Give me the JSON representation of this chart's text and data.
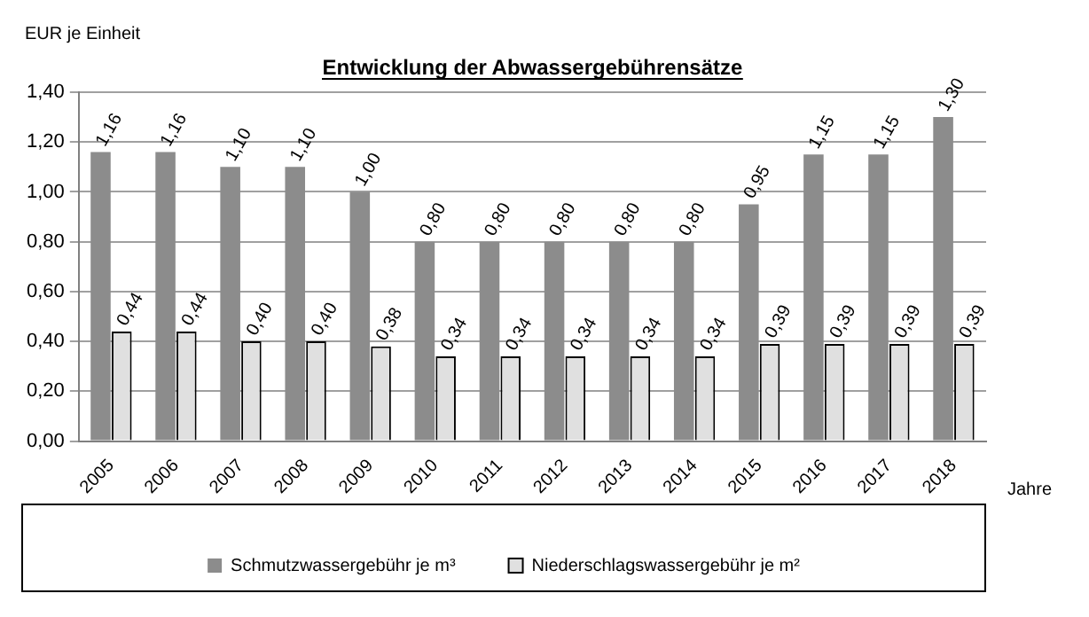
{
  "chart_data": {
    "type": "bar",
    "title": "Entwicklung der Abwassergebührensätze",
    "ylabel": "EUR je Einheit",
    "xlabel": "Jahre",
    "categories": [
      "2005",
      "2006",
      "2007",
      "2008",
      "2009",
      "2010",
      "2011",
      "2012",
      "2013",
      "2014",
      "2015",
      "2016",
      "2017",
      "2018"
    ],
    "series": [
      {
        "name": "Schmutzwassergebühr je m³",
        "color": "#8c8c8c",
        "values": [
          1.16,
          1.16,
          1.1,
          1.1,
          1.0,
          0.8,
          0.8,
          0.8,
          0.8,
          0.8,
          0.95,
          1.15,
          1.15,
          1.3
        ],
        "value_labels": [
          "1,16",
          "1,16",
          "1,10",
          "1,10",
          "1,00",
          "0,80",
          "0,80",
          "0,80",
          "0,80",
          "0,80",
          "0,95",
          "1,15",
          "1,15",
          "1,30"
        ]
      },
      {
        "name": "Niederschlagswassergebühr je m²",
        "color": "#e0e0e0",
        "values": [
          0.44,
          0.44,
          0.4,
          0.4,
          0.38,
          0.34,
          0.34,
          0.34,
          0.34,
          0.34,
          0.39,
          0.39,
          0.39,
          0.39
        ],
        "value_labels": [
          "0,44",
          "0,44",
          "0,40",
          "0,40",
          "0,38",
          "0,34",
          "0,34",
          "0,34",
          "0,34",
          "0,34",
          "0,39",
          "0,39",
          "0,39",
          "0,39"
        ]
      }
    ],
    "ylim": [
      0,
      1.4
    ],
    "yticks": [
      {
        "value": 0,
        "label": "0,00"
      },
      {
        "value": 0.2,
        "label": "0,20"
      },
      {
        "value": 0.4,
        "label": "0,40"
      },
      {
        "value": 0.6,
        "label": "0,60"
      },
      {
        "value": 0.8,
        "label": "0,80"
      },
      {
        "value": 1.0,
        "label": "1,00"
      },
      {
        "value": 1.2,
        "label": "1,20"
      },
      {
        "value": 1.4,
        "label": "1,40"
      }
    ],
    "grid": "y",
    "legend": "bottom"
  }
}
